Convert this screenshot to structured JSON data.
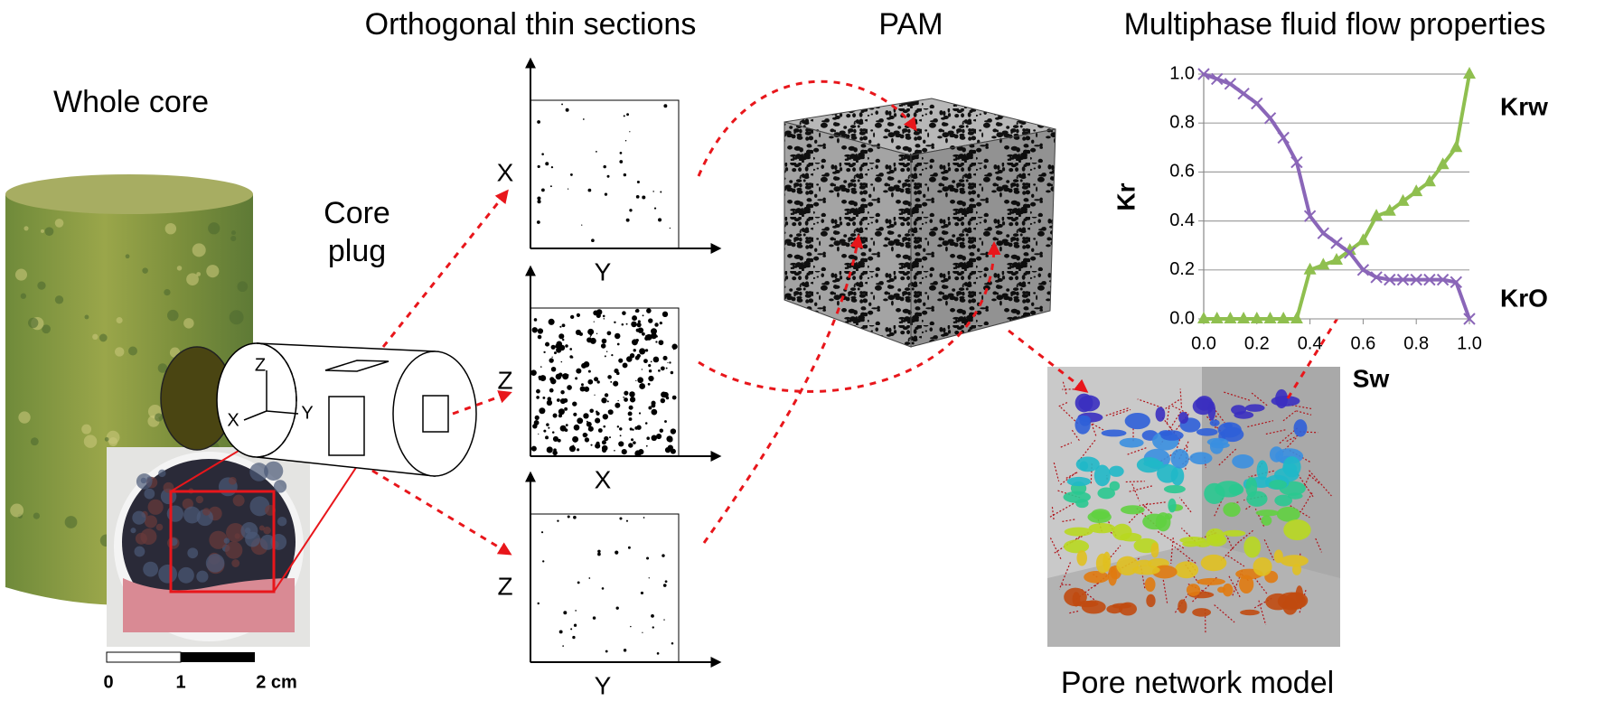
{
  "titles": {
    "thin_sections": "Orthogonal thin sections",
    "pam": "PAM",
    "flow_properties": "Multiphase fluid flow properties",
    "whole_core": "Whole core",
    "core_plug": [
      "Core",
      "plug"
    ],
    "pore_network": "Pore network model"
  },
  "core_plug_axes": [
    "Z",
    "X",
    "Y"
  ],
  "scale_bar": [
    "0",
    "1",
    "2 cm"
  ],
  "thin_sections": [
    {
      "vertical": "X",
      "horizontal": "Y"
    },
    {
      "vertical": "Z",
      "horizontal": "X"
    },
    {
      "vertical": "Z",
      "horizontal": "Y"
    }
  ],
  "chart_data": {
    "type": "line",
    "x_label": "Sw",
    "y_label": "Kr",
    "x": [
      0,
      0.05,
      0.1,
      0.15,
      0.2,
      0.25,
      0.3,
      0.35,
      0.4,
      0.45,
      0.5,
      0.55,
      0.6,
      0.65,
      0.7,
      0.75,
      0.8,
      0.85,
      0.9,
      0.95,
      1.0
    ],
    "series": [
      {
        "name": "Krw",
        "color": "#8fbf4f",
        "marker": "triangle",
        "values": [
          0,
          0,
          0,
          0,
          0,
          0,
          0,
          0,
          0.2,
          0.22,
          0.24,
          0.28,
          0.32,
          0.42,
          0.44,
          0.48,
          0.52,
          0.56,
          0.63,
          0.7,
          1.0
        ]
      },
      {
        "name": "KrO",
        "color": "#8a66b8",
        "marker": "x",
        "values": [
          1.0,
          0.98,
          0.96,
          0.92,
          0.88,
          0.82,
          0.74,
          0.64,
          0.42,
          0.35,
          0.31,
          0.27,
          0.2,
          0.17,
          0.16,
          0.16,
          0.16,
          0.16,
          0.16,
          0.15,
          0
        ]
      }
    ],
    "xlim": [
      0,
      1
    ],
    "ylim": [
      0,
      1
    ],
    "xticks": [
      {
        "value": 0,
        "label": "0.0"
      },
      {
        "value": 0.2,
        "label": "0.2"
      },
      {
        "value": 0.4,
        "label": "0.4"
      },
      {
        "value": 0.6,
        "label": "0.6"
      },
      {
        "value": 0.8,
        "label": "0.8"
      },
      {
        "value": 1,
        "label": "1.0"
      }
    ],
    "yticks": [
      {
        "value": 0,
        "label": "0.0"
      },
      {
        "value": 0.2,
        "label": "0.2"
      },
      {
        "value": 0.4,
        "label": "0.4"
      },
      {
        "value": 0.6,
        "label": "0.6"
      },
      {
        "value": 0.8,
        "label": "0.8"
      },
      {
        "value": 1,
        "label": "1.0"
      }
    ],
    "grid": true
  }
}
